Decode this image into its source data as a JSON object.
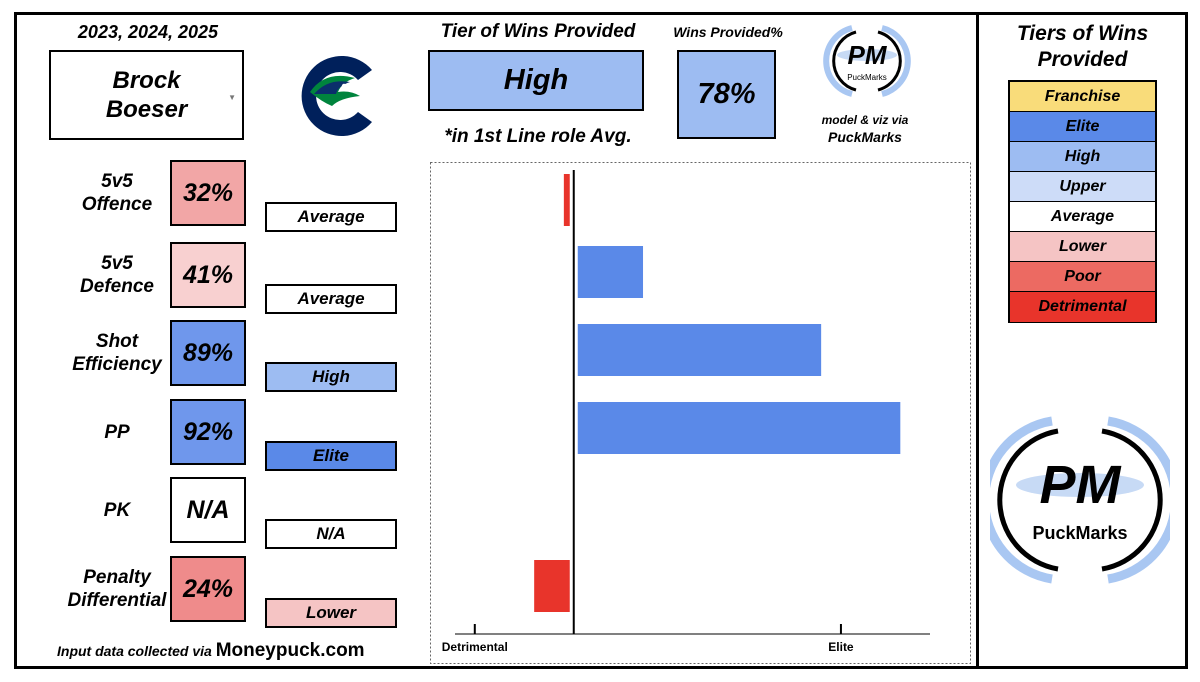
{
  "header": {
    "seasons": "2023, 2024, 2025",
    "player_name": "Brock Boeser",
    "tier_title": "Tier of Wins Provided",
    "tier_value": "High",
    "tier_color": "#9dbcf2",
    "role_note": "*in 1st Line role Avg.",
    "wins_title": "Wins Provided%",
    "wins_value": "78%",
    "credit_line1": "model & viz via",
    "credit_line2": "PuckMarks"
  },
  "brand": {
    "name": "PuckMarks",
    "initials": "PM"
  },
  "footer": {
    "prefix": "Input data collected via ",
    "source": "Moneypuck.com"
  },
  "metrics": [
    {
      "label_lines": [
        "5v5",
        "Offence"
      ],
      "pct": "32%",
      "pct_color": "#f2a6a6",
      "tier": "Average",
      "tier_color": "#ffffff"
    },
    {
      "label_lines": [
        "5v5",
        "Defence"
      ],
      "pct": "41%",
      "pct_color": "#f8d0d0",
      "tier": "Average",
      "tier_color": "#ffffff"
    },
    {
      "label_lines": [
        "Shot",
        "Efficiency"
      ],
      "pct": "89%",
      "pct_color": "#6f97ec",
      "tier": "High",
      "tier_color": "#9dbcf2"
    },
    {
      "label_lines": [
        "PP"
      ],
      "pct": "92%",
      "pct_color": "#6f97ec",
      "tier": "Elite",
      "tier_color": "#5a89e8"
    },
    {
      "label_lines": [
        "PK"
      ],
      "pct": "N/A",
      "pct_color": "#ffffff",
      "tier": "N/A",
      "tier_color": "#ffffff"
    },
    {
      "label_lines": [
        "Penalty",
        "Differential"
      ],
      "pct": "24%",
      "pct_color": "#ef8b8b",
      "tier": "Lower",
      "tier_color": "#f5c4c4"
    }
  ],
  "chart_data": {
    "type": "bar",
    "orientation": "horizontal",
    "categories": [
      "5v5 Offence",
      "5v5 Defence",
      "Shot Efficiency",
      "PP",
      "PK",
      "Penalty Differential"
    ],
    "values": [
      -0.1,
      0.7,
      2.5,
      3.3,
      0,
      -0.4
    ],
    "colors": [
      "#e8342b",
      "#5a89e8",
      "#5a89e8",
      "#5a89e8",
      "#ffffff",
      "#e8342b"
    ],
    "xlim": [
      -1.2,
      3.6
    ],
    "ticks": [
      {
        "value": -1,
        "label": "Detrimental"
      },
      {
        "value": 2.7,
        "label": "Elite"
      }
    ],
    "zero_line": 0
  },
  "legend": {
    "title": "Tiers of Wins Provided",
    "items": [
      {
        "label": "Franchise",
        "color": "#f9dc7a"
      },
      {
        "label": "Elite",
        "color": "#5a89e8"
      },
      {
        "label": "High",
        "color": "#9dbcf2"
      },
      {
        "label": "Upper",
        "color": "#cddcf8"
      },
      {
        "label": "Average",
        "color": "#ffffff"
      },
      {
        "label": "Lower",
        "color": "#f5c4c4"
      },
      {
        "label": "Poor",
        "color": "#ec6a62"
      },
      {
        "label": "Detrimental",
        "color": "#e8342b"
      }
    ]
  }
}
